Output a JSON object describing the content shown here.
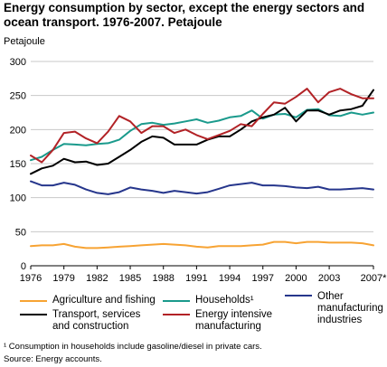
{
  "chart_data": {
    "type": "line",
    "title": "Energy consumption by sector, except the energy sectors and ocean transport. 1976-2007. Petajoule",
    "ylabel": "Petajoule",
    "xlabel": "",
    "ylim": [
      0,
      300
    ],
    "yticks": [
      "0",
      "50",
      "100",
      "150",
      "200",
      "250",
      "300"
    ],
    "xlim": [
      1976,
      2007
    ],
    "xticks": [
      {
        "x": 1976,
        "label": "1976"
      },
      {
        "x": 1979,
        "label": "1979"
      },
      {
        "x": 1982,
        "label": "1982"
      },
      {
        "x": 1985,
        "label": "1985"
      },
      {
        "x": 1988,
        "label": "1988"
      },
      {
        "x": 1991,
        "label": "1991"
      },
      {
        "x": 1994,
        "label": "1994"
      },
      {
        "x": 1997,
        "label": "1997"
      },
      {
        "x": 2000,
        "label": "2000"
      },
      {
        "x": 2003,
        "label": "2003"
      },
      {
        "x": 2007,
        "label": "2007*"
      }
    ],
    "grid": true,
    "legend_position": "bottom",
    "x": [
      1976,
      1977,
      1978,
      1979,
      1980,
      1981,
      1982,
      1983,
      1984,
      1985,
      1986,
      1987,
      1988,
      1989,
      1990,
      1991,
      1992,
      1993,
      1994,
      1995,
      1996,
      1997,
      1998,
      1999,
      2000,
      2001,
      2002,
      2003,
      2004,
      2005,
      2006,
      2007
    ],
    "series": [
      {
        "name": "Agriculture and fishing",
        "color": "#f7a333",
        "values": [
          29,
          30,
          30,
          32,
          28,
          26,
          26,
          27,
          28,
          29,
          30,
          31,
          32,
          31,
          30,
          28,
          27,
          29,
          29,
          29,
          30,
          31,
          35,
          35,
          33,
          35,
          35,
          34,
          34,
          34,
          33,
          30
        ]
      },
      {
        "name": "Households¹",
        "color": "#1a9a8c",
        "values": [
          155,
          160,
          170,
          179,
          178,
          177,
          179,
          180,
          185,
          198,
          208,
          210,
          207,
          209,
          212,
          215,
          210,
          213,
          218,
          220,
          228,
          216,
          222,
          223,
          218,
          229,
          230,
          221,
          220,
          225,
          222,
          225
        ]
      },
      {
        "name": "Other manufacturing industries",
        "color": "#26368c",
        "values": [
          124,
          118,
          118,
          122,
          119,
          112,
          107,
          105,
          108,
          115,
          112,
          110,
          107,
          110,
          108,
          106,
          108,
          113,
          118,
          120,
          122,
          118,
          118,
          117,
          115,
          114,
          116,
          112,
          112,
          113,
          114,
          112
        ]
      },
      {
        "name": "Transport, services and construction",
        "color": "#000000",
        "values": [
          135,
          143,
          147,
          157,
          152,
          153,
          148,
          150,
          160,
          170,
          182,
          190,
          188,
          178,
          178,
          178,
          185,
          190,
          190,
          200,
          212,
          218,
          222,
          232,
          212,
          228,
          228,
          222,
          228,
          230,
          235,
          258
        ]
      },
      {
        "name": "Energy intensive manufacturing",
        "color": "#b22226",
        "values": [
          162,
          152,
          170,
          195,
          197,
          187,
          180,
          197,
          220,
          212,
          195,
          205,
          205,
          195,
          200,
          192,
          186,
          192,
          198,
          208,
          205,
          223,
          240,
          238,
          248,
          260,
          240,
          255,
          260,
          252,
          246,
          246
        ]
      }
    ]
  },
  "legend": [
    {
      "label": "Agriculture and fishing",
      "color": "#f7a333"
    },
    {
      "label": "Households¹",
      "color": "#1a9a8c"
    },
    {
      "label": "Other manufacturing industries",
      "color": "#26368c"
    },
    {
      "label": "Transport, services and construction",
      "color": "#000000"
    },
    {
      "label": "Energy intensive manufacturing",
      "color": "#b22226"
    }
  ],
  "footnotes": {
    "note": "¹ Consumption in households include gasoline/diesel in private cars.",
    "source": "Source: Energy accounts."
  }
}
